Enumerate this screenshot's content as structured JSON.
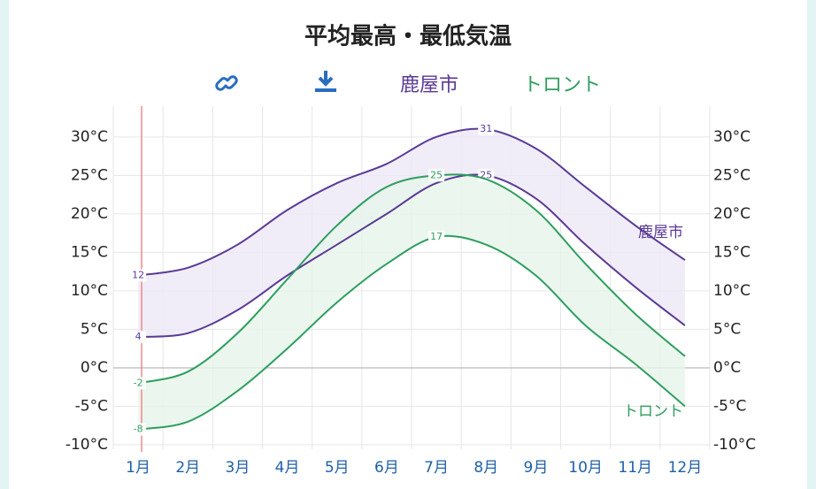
{
  "chart_data": {
    "type": "band",
    "title": "平均最高・最低気温",
    "categories": [
      "1月",
      "2月",
      "3月",
      "4月",
      "5月",
      "6月",
      "7月",
      "8月",
      "9月",
      "10月",
      "11月",
      "12月"
    ],
    "series": [
      {
        "name": "鹿屋市",
        "color": "#5b3a96",
        "fill": "#ece8f7",
        "values": [
          12,
          13,
          16,
          20.5,
          24,
          26.5,
          30,
          31,
          28.5,
          23.5,
          18.5,
          14
        ],
        "value_labels": [
          "12",
          null,
          null,
          null,
          null,
          null,
          null,
          "31",
          null,
          null,
          null,
          null
        ],
        "low": [
          4,
          4.5,
          7.5,
          12,
          16,
          20,
          24,
          25,
          22,
          16,
          10.5,
          5.5
        ],
        "low_labels": [
          "4",
          null,
          null,
          null,
          null,
          null,
          null,
          "25",
          null,
          null,
          null,
          null
        ]
      },
      {
        "name": "トロント",
        "color": "#2e9e5e",
        "fill": "#e6f5ea",
        "values": [
          -2,
          -0.5,
          4.5,
          11.5,
          18.5,
          23.5,
          25,
          24.5,
          20.5,
          13.5,
          7,
          1.5
        ],
        "value_labels": [
          "-2",
          null,
          null,
          null,
          null,
          null,
          "25",
          null,
          null,
          null,
          null,
          null
        ],
        "low": [
          -8,
          -7,
          -3,
          2.5,
          8.5,
          13.5,
          17,
          16,
          12,
          5.5,
          0.5,
          -5
        ],
        "low_labels": [
          "-8",
          null,
          null,
          null,
          null,
          null,
          "17",
          null,
          null,
          null,
          null,
          null
        ]
      }
    ],
    "ylim": [
      -10,
      34
    ],
    "yticks": [
      {
        "value": -10,
        "label": "-10°C"
      },
      {
        "value": -5,
        "label": "-5°C"
      },
      {
        "value": 0,
        "label": "0°C"
      },
      {
        "value": 5,
        "label": "5°C"
      },
      {
        "value": 10,
        "label": "10°C"
      },
      {
        "value": 15,
        "label": "15°C"
      },
      {
        "value": 20,
        "label": "20°C"
      },
      {
        "value": 25,
        "label": "25°C"
      },
      {
        "value": 30,
        "label": "30°C"
      }
    ],
    "grid": true
  }
}
